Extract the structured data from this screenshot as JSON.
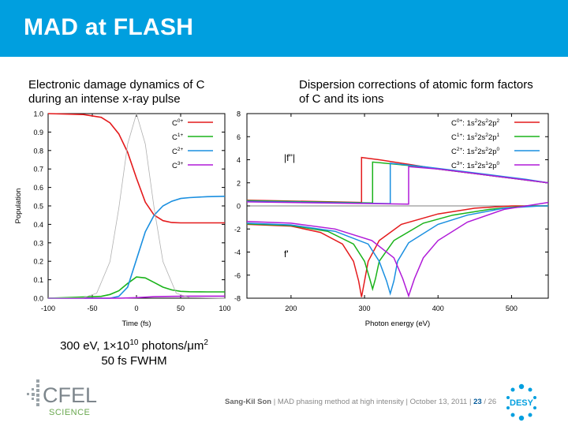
{
  "slide": {
    "title": "MAD at FLASH",
    "left_caption": "Electronic damage dynamics of C during an intense x-ray pulse",
    "right_caption": "Dispersion corrections of atomic form factors of C and its ions",
    "note_line1_pre": "300 eV, 1×10",
    "note_line1_exp": "10",
    "note_line1_post": " photons/μm",
    "note_line1_exp2": "2",
    "note_line2": "50 fs FWHM",
    "footer_author": "Sang-Kil Son",
    "footer_text": "| MAD phasing method at high intensity | October 13, 2011 |",
    "footer_page": "23",
    "footer_total": "/ 26",
    "logo_cfel": "CFEL",
    "logo_science": "SCIENCE",
    "logo_desy": "DESY"
  },
  "colors": {
    "header": "#009fdf",
    "red": "#e41a1c",
    "green": "#1ab31a",
    "blue": "#1a8fe0",
    "purple": "#b01ad8",
    "gray": "#b0b0b0"
  },
  "chart_data": [
    {
      "type": "line",
      "xlabel": "Time (fs)",
      "ylabel": "Population",
      "xlim": [
        -100,
        100
      ],
      "ylim": [
        0,
        1.0
      ],
      "xticks": [
        "-100",
        "-50",
        "0",
        "50",
        "100"
      ],
      "yticks": [
        "0.0",
        "0.1",
        "0.2",
        "0.3",
        "0.4",
        "0.5",
        "0.6",
        "0.7",
        "0.8",
        "0.9",
        "1.0"
      ],
      "legend_position": "top-right",
      "series": [
        {
          "name": "C0+",
          "label_base": "C",
          "label_sup": "0+",
          "color": "#e41a1c",
          "x": [
            -100,
            -60,
            -40,
            -30,
            -20,
            -10,
            0,
            10,
            20,
            30,
            40,
            50,
            60,
            100
          ],
          "y": [
            1.0,
            0.995,
            0.98,
            0.95,
            0.89,
            0.79,
            0.65,
            0.52,
            0.45,
            0.42,
            0.41,
            0.408,
            0.408,
            0.408
          ]
        },
        {
          "name": "C1+",
          "label_base": "C",
          "label_sup": "1+",
          "color": "#1ab31a",
          "x": [
            -100,
            -40,
            -30,
            -20,
            -10,
            0,
            10,
            20,
            30,
            40,
            50,
            60,
            80,
            100
          ],
          "y": [
            0.0,
            0.01,
            0.02,
            0.04,
            0.08,
            0.115,
            0.11,
            0.085,
            0.06,
            0.045,
            0.037,
            0.035,
            0.034,
            0.034
          ]
        },
        {
          "name": "C2+",
          "label_base": "C",
          "label_sup": "2+",
          "color": "#1a8fe0",
          "x": [
            -100,
            -30,
            -20,
            -10,
            0,
            10,
            20,
            30,
            40,
            50,
            60,
            80,
            100
          ],
          "y": [
            0.0,
            0.0,
            0.01,
            0.06,
            0.21,
            0.36,
            0.45,
            0.5,
            0.525,
            0.54,
            0.545,
            0.55,
            0.552
          ]
        },
        {
          "name": "C3+",
          "label_base": "C",
          "label_sup": "3+",
          "color": "#b01ad8",
          "x": [
            -100,
            -20,
            0,
            20,
            40,
            60,
            100
          ],
          "y": [
            0.0,
            0.0,
            0.003,
            0.008,
            0.01,
            0.011,
            0.011
          ]
        },
        {
          "name": "",
          "color": "#b0b0b0",
          "role": "pulse",
          "x": [
            -100,
            -60,
            -45,
            -30,
            -20,
            -10,
            0,
            10,
            20,
            30,
            45,
            60,
            100
          ],
          "y": [
            0.0,
            0.003,
            0.027,
            0.198,
            0.487,
            0.835,
            1.0,
            0.835,
            0.487,
            0.198,
            0.027,
            0.003,
            0.0
          ]
        }
      ]
    },
    {
      "type": "line",
      "xlabel": "Photon energy (eV)",
      "ylabel": "",
      "xlim": [
        140,
        550
      ],
      "ylim": [
        -8,
        8
      ],
      "xticks": [
        "200",
        "300",
        "400",
        "500"
      ],
      "yticks": [
        "-8",
        "-6",
        "-4",
        "-2",
        "0",
        "2",
        "4",
        "6",
        "8"
      ],
      "legend_position": "top-right",
      "annotations": [
        "|f''|",
        "f'"
      ],
      "series": [
        {
          "name": "C0+: 1s2 2s2 2p2",
          "label_parts": [
            "C",
            "0+",
            ": 1s",
            "2",
            "2s",
            "2",
            "2p",
            "2"
          ],
          "color": "#e41a1c",
          "edge": 296,
          "fpp_x": [
            140,
            296,
            296,
            320,
            360,
            400,
            450,
            500,
            550
          ],
          "fpp_y": [
            0.5,
            0.3,
            4.2,
            4.0,
            3.6,
            3.2,
            2.8,
            2.4,
            2.0
          ],
          "fp_x": [
            140,
            200,
            240,
            270,
            285,
            292,
            296,
            300,
            305,
            320,
            350,
            400,
            450,
            500,
            550
          ],
          "fp_y": [
            -1.6,
            -1.75,
            -2.3,
            -3.3,
            -4.8,
            -6.5,
            -7.9,
            -6.5,
            -4.8,
            -3.0,
            -1.6,
            -0.7,
            -0.2,
            0.0,
            0.0
          ]
        },
        {
          "name": "C1+: 1s2 2s2 2p1",
          "label_parts": [
            "C",
            "1+",
            ": 1s",
            "2",
            "2s",
            "2",
            "2p",
            "1"
          ],
          "color": "#1ab31a",
          "edge": 311,
          "fpp_x": [
            140,
            311,
            311,
            360,
            400,
            450,
            500,
            550
          ],
          "fpp_y": [
            0.45,
            0.25,
            3.8,
            3.5,
            3.2,
            2.8,
            2.4,
            2.0
          ],
          "fp_x": [
            140,
            200,
            250,
            285,
            300,
            307,
            311,
            315,
            320,
            340,
            380,
            420,
            470,
            520,
            550
          ],
          "fp_y": [
            -1.55,
            -1.7,
            -2.2,
            -3.3,
            -4.8,
            -6.3,
            -7.2,
            -6.3,
            -4.8,
            -3.0,
            -1.5,
            -0.8,
            -0.3,
            0.0,
            0.0
          ]
        },
        {
          "name": "C2+: 1s2 2s2 2p0",
          "label_parts": [
            "C",
            "2+",
            ": 1s",
            "2",
            "2s",
            "2",
            "2p",
            "0"
          ],
          "color": "#1a8fe0",
          "edge": 335,
          "fpp_x": [
            140,
            335,
            335,
            380,
            420,
            470,
            520,
            550
          ],
          "fpp_y": [
            0.4,
            0.2,
            3.7,
            3.4,
            3.1,
            2.7,
            2.3,
            2.0
          ],
          "fp_x": [
            140,
            200,
            260,
            305,
            320,
            330,
            335,
            340,
            345,
            360,
            400,
            440,
            490,
            540,
            550
          ],
          "fp_y": [
            -1.5,
            -1.65,
            -2.2,
            -3.3,
            -4.8,
            -6.5,
            -7.6,
            -6.5,
            -4.8,
            -3.2,
            -1.6,
            -0.8,
            -0.2,
            0.0,
            0.0
          ]
        },
        {
          "name": "C3+: 1s2 2s1 2p0",
          "label_parts": [
            "C",
            "3+",
            ": 1s",
            "2",
            "2s",
            "1",
            "2p",
            "0"
          ],
          "color": "#b01ad8",
          "edge": 360,
          "fpp_x": [
            140,
            360,
            360,
            400,
            450,
            500,
            550
          ],
          "fpp_y": [
            0.35,
            0.15,
            3.4,
            3.2,
            2.8,
            2.4,
            2.0
          ],
          "fp_x": [
            140,
            200,
            260,
            310,
            340,
            352,
            360,
            368,
            380,
            400,
            440,
            490,
            550
          ],
          "fp_y": [
            -1.35,
            -1.5,
            -2.0,
            -3.0,
            -4.5,
            -6.3,
            -7.8,
            -6.3,
            -4.5,
            -3.0,
            -1.4,
            -0.3,
            0.3
          ]
        }
      ]
    }
  ]
}
